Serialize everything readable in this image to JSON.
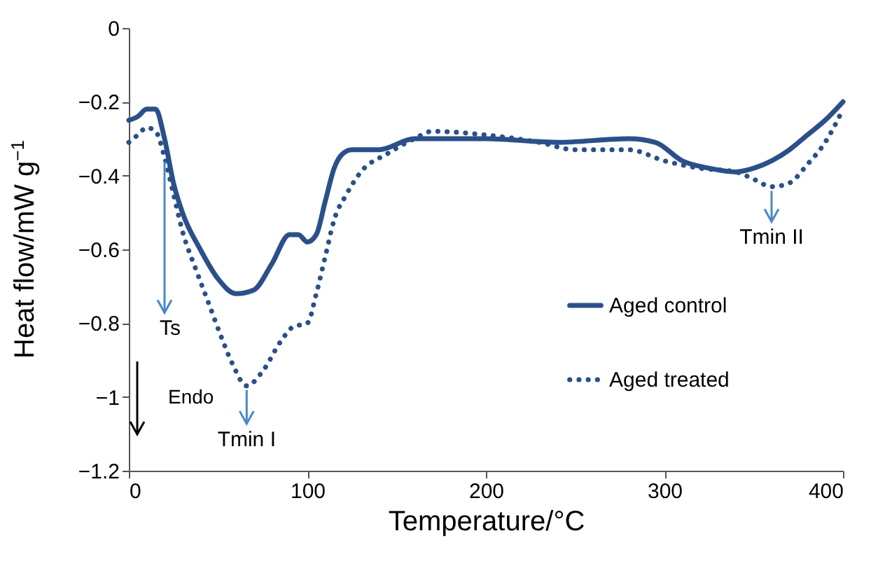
{
  "chart_data": {
    "type": "line",
    "xlabel": "Temperature/°C",
    "ylabel": "Heat flow/mW g$^{−1}$",
    "xlim": [
      0,
      400
    ],
    "xticks": [
      0,
      100,
      200,
      300,
      400
    ],
    "ylim": [
      -1.2,
      0
    ],
    "yticks": [
      -1.2,
      -1,
      -0.8,
      -0.6,
      -0.4,
      -0.2,
      0
    ],
    "grid": false,
    "legend": "right",
    "marker": "none",
    "annotations": [
      {
        "text": "Ts",
        "x": 20,
        "y": -0.35
      },
      {
        "text": "Tmin I",
        "x": 66,
        "y": -0.97
      },
      {
        "text": "Tmin II",
        "x": 360,
        "y": -0.43
      },
      "Endo"
    ],
    "series": [
      {
        "name": "Aged control",
        "color": "#2b5089",
        "line_style": "solid",
        "x": [
          0,
          5,
          10,
          15,
          20,
          25,
          30,
          40,
          50,
          60,
          70,
          80,
          90,
          95,
          100,
          105,
          110,
          115,
          120,
          125,
          140,
          160,
          200,
          240,
          280,
          295,
          310,
          325,
          340,
          350,
          360,
          370,
          380,
          390,
          400
        ],
        "values": [
          -0.25,
          -0.24,
          -0.22,
          -0.22,
          -0.3,
          -0.42,
          -0.5,
          -0.6,
          -0.68,
          -0.72,
          -0.71,
          -0.64,
          -0.56,
          -0.56,
          -0.58,
          -0.56,
          -0.47,
          -0.38,
          -0.34,
          -0.33,
          -0.33,
          -0.3,
          -0.3,
          -0.31,
          -0.3,
          -0.31,
          -0.36,
          -0.38,
          -0.39,
          -0.38,
          -0.36,
          -0.33,
          -0.29,
          -0.25,
          -0.2
        ]
      },
      {
        "name": "Aged treated",
        "color": "#2b5089",
        "line_style": "dotted",
        "x": [
          0,
          5,
          10,
          15,
          20,
          25,
          30,
          38,
          45,
          52,
          58,
          66,
          75,
          85,
          92,
          100,
          105,
          110,
          115,
          122,
          130,
          145,
          160,
          170,
          200,
          230,
          250,
          280,
          300,
          320,
          340,
          350,
          360,
          370,
          380,
          390,
          400
        ],
        "values": [
          -0.31,
          -0.29,
          -0.27,
          -0.28,
          -0.35,
          -0.45,
          -0.55,
          -0.66,
          -0.75,
          -0.84,
          -0.91,
          -0.97,
          -0.93,
          -0.85,
          -0.81,
          -0.8,
          -0.72,
          -0.62,
          -0.52,
          -0.45,
          -0.39,
          -0.34,
          -0.3,
          -0.28,
          -0.29,
          -0.31,
          -0.33,
          -0.33,
          -0.36,
          -0.38,
          -0.39,
          -0.41,
          -0.43,
          -0.42,
          -0.37,
          -0.31,
          -0.22
        ]
      }
    ]
  }
}
